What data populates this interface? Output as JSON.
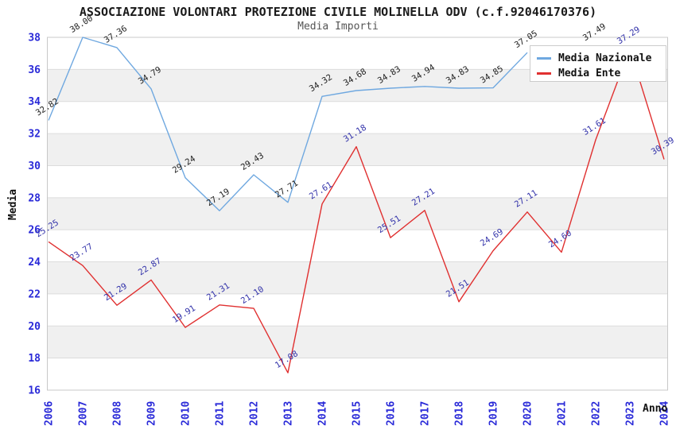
{
  "chart_data": {
    "type": "line",
    "title": "ASSOCIAZIONE VOLONTARI PROTEZIONE CIVILE MOLINELLA ODV (c.f.92046170376)",
    "subtitle": "Media Importi",
    "xlabel": "Anno",
    "ylabel": "Media",
    "x": [
      "2006",
      "2007",
      "2008",
      "2009",
      "2010",
      "2011",
      "2012",
      "2013",
      "2014",
      "2015",
      "2016",
      "2017",
      "2018",
      "2019",
      "2020",
      "2021",
      "2022",
      "2023",
      "2024"
    ],
    "ylim": [
      16,
      38
    ],
    "ytick_step": 2,
    "yticks": [
      "16",
      "18",
      "20",
      "22",
      "24",
      "26",
      "28",
      "30",
      "32",
      "34",
      "36",
      "38"
    ],
    "grid": "horizontal gridlines with alternating gray bands",
    "legend_position": "top-right",
    "series": [
      {
        "name": "Media Nazionale",
        "color": "#6fa8e0",
        "label_color": "#222222",
        "values": [
          32.82,
          38.0,
          37.36,
          34.79,
          29.24,
          27.19,
          29.43,
          27.71,
          34.32,
          34.68,
          34.83,
          34.94,
          34.83,
          34.85,
          37.05,
          null,
          37.49,
          null,
          null
        ],
        "labels": [
          "32.82",
          "38.00",
          "37.36",
          "34.79",
          "29.24",
          "27.19",
          "29.43",
          "27.71",
          "34.32",
          "34.68",
          "34.83",
          "34.94",
          "34.83",
          "34.85",
          "37.05",
          "",
          "37.49",
          "",
          ""
        ],
        "note": "values from 2021 onward hidden behind legend box"
      },
      {
        "name": "Media Ente",
        "color": "#e03030",
        "label_color": "#3333aa",
        "values": [
          25.25,
          23.77,
          21.29,
          22.87,
          19.91,
          21.31,
          21.1,
          17.08,
          27.61,
          31.18,
          25.51,
          27.21,
          21.51,
          24.69,
          27.11,
          24.6,
          31.61,
          37.29,
          30.39
        ],
        "labels": [
          "25.25",
          "23.77",
          "21.29",
          "22.87",
          "19.91",
          "21.31",
          "21.10",
          "17.08",
          "27.61",
          "31.18",
          "25.51",
          "27.21",
          "21.51",
          "24.69",
          "27.11",
          "24.60",
          "31.61",
          "37.29",
          "30.39"
        ]
      }
    ]
  },
  "colors": {
    "axis_tick": "#2a2ad8",
    "band": "#f0f0f0",
    "gridline": "#dcdcdc",
    "plot_border": "#c8c8c8",
    "title": "#1a1a1a",
    "subtitle": "#555555"
  }
}
